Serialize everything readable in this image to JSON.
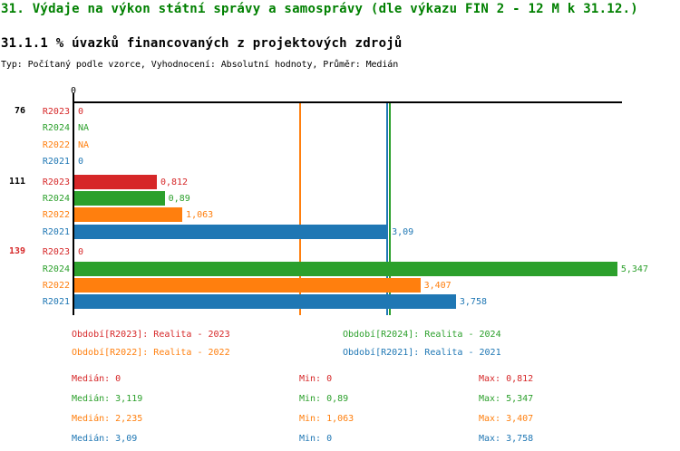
{
  "page": {
    "title": "31. Výdaje na výkon státní správy a samosprávy (dle výkazu FIN 2 - 12 M k 31.12.)",
    "subtitle": "31.1.1 % úvazků financovaných z projektových zdrojů",
    "type_line": "Typ: Počítaný podle vzorce, Vyhodnocení: Absolutní hodnoty, Průměr: Medián"
  },
  "colors": {
    "title_green": "#008000",
    "R2023": "#d62728",
    "R2024": "#2ca02c",
    "R2022": "#ff7f0e",
    "R2021": "#1f77b4",
    "axis": "#000000",
    "group_label_default": "#000000",
    "group_label_alert": "#d62728"
  },
  "chart_data": {
    "type": "bar",
    "orientation": "horizontal",
    "value_axis": {
      "tick_labels": [
        "0"
      ],
      "range": [
        0,
        5.4
      ],
      "grid": false
    },
    "series_order": [
      "R2023",
      "R2024",
      "R2022",
      "R2021"
    ],
    "groups": [
      {
        "label": "76",
        "label_color": "#000000",
        "bars": [
          {
            "series": "R2023",
            "value": 0,
            "display": "0"
          },
          {
            "series": "R2024",
            "value": null,
            "display": "NA"
          },
          {
            "series": "R2022",
            "value": null,
            "display": "NA"
          },
          {
            "series": "R2021",
            "value": 0,
            "display": "0"
          }
        ]
      },
      {
        "label": "111",
        "label_color": "#000000",
        "bars": [
          {
            "series": "R2023",
            "value": 0.812,
            "display": "0,812"
          },
          {
            "series": "R2024",
            "value": 0.89,
            "display": "0,89"
          },
          {
            "series": "R2022",
            "value": 1.063,
            "display": "1,063"
          },
          {
            "series": "R2021",
            "value": 3.09,
            "display": "3,09"
          }
        ]
      },
      {
        "label": "139",
        "label_color": "#d62728",
        "bars": [
          {
            "series": "R2023",
            "value": 0,
            "display": "0"
          },
          {
            "series": "R2024",
            "value": 5.347,
            "display": "5,347"
          },
          {
            "series": "R2022",
            "value": 3.407,
            "display": "3,407"
          },
          {
            "series": "R2021",
            "value": 3.758,
            "display": "3,758"
          }
        ]
      }
    ],
    "median_lines": [
      {
        "series": "R2023",
        "value": 0
      },
      {
        "series": "R2024",
        "value": 3.119
      },
      {
        "series": "R2022",
        "value": 2.235
      },
      {
        "series": "R2021",
        "value": 3.09
      }
    ]
  },
  "legend": {
    "columns": [
      [
        {
          "series": "R2023",
          "label": "Období[R2023]: Realita - 2023"
        },
        {
          "series": "R2022",
          "label": "Období[R2022]: Realita - 2022"
        }
      ],
      [
        {
          "series": "R2024",
          "label": "Období[R2024]: Realita - 2024"
        },
        {
          "series": "R2021",
          "label": "Období[R2021]: Realita - 2021"
        }
      ]
    ]
  },
  "stats": {
    "labels": {
      "median": "Medián",
      "min": "Min",
      "max": "Max"
    },
    "rows": [
      {
        "series": "R2023",
        "median": "0",
        "min": "0",
        "max": "0,812"
      },
      {
        "series": "R2024",
        "median": "3,119",
        "min": "0,89",
        "max": "5,347"
      },
      {
        "series": "R2022",
        "median": "2,235",
        "min": "1,063",
        "max": "3,407"
      },
      {
        "series": "R2021",
        "median": "3,09",
        "min": "0",
        "max": "3,758"
      }
    ]
  }
}
